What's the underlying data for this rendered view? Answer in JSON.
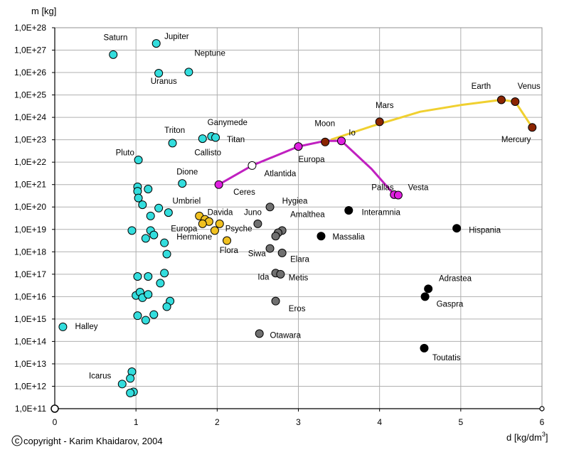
{
  "chart_data": {
    "type": "scatter",
    "xlabel": "d [kg/dm",
    "xlabel_sup": "3",
    "xlabel_close": "]",
    "ylabel": "m [kg]",
    "xlim": [
      0,
      6
    ],
    "ylim_log10": [
      11,
      28
    ],
    "grid": true,
    "x_ticks": [
      "0",
      "1",
      "2",
      "3",
      "4",
      "5",
      "6"
    ],
    "y_ticks": [
      "1,0E+11",
      "1,0E+12",
      "1,0E+13",
      "1,0E+14",
      "1,0E+15",
      "1,0E+16",
      "1,0E+17",
      "1,0E+18",
      "1,0E+19",
      "1,0E+20",
      "1,0E+21",
      "1,0E+22",
      "1,0E+23",
      "1,0E+24",
      "1,0E+25",
      "1,0E+26",
      "1,0E+27",
      "1,0E+28"
    ],
    "copyright_symbol": "c",
    "copyright_text": "copyright - Karim Khaidarov, 2004",
    "colors": {
      "cyan": "#33dddd",
      "gold": "#f0c020",
      "gray": "#707070",
      "black": "#000000",
      "brown": "#8b2500",
      "magenta": "#e020e0",
      "white": "#ffffff",
      "gold_line": "#f0d030",
      "magenta_line": "#c020c0"
    },
    "series": [
      {
        "color": "cyan",
        "points": [
          [
            0.72,
            26.8
          ],
          [
            1.25,
            27.3
          ],
          [
            1.28,
            25.97
          ],
          [
            1.65,
            26.02
          ],
          [
            1.45,
            22.85
          ],
          [
            1.82,
            23.05
          ],
          [
            1.93,
            23.15
          ],
          [
            1.98,
            23.1
          ],
          [
            1.03,
            22.1
          ],
          [
            1.57,
            21.05
          ],
          [
            1.02,
            20.9
          ],
          [
            1.15,
            20.8
          ],
          [
            1.02,
            20.7
          ],
          [
            1.03,
            20.4
          ],
          [
            1.08,
            20.1
          ],
          [
            1.28,
            19.95
          ],
          [
            1.4,
            19.75
          ],
          [
            1.18,
            19.6
          ],
          [
            0.95,
            18.95
          ],
          [
            1.18,
            18.95
          ],
          [
            1.22,
            18.75
          ],
          [
            1.12,
            18.6
          ],
          [
            1.35,
            18.4
          ],
          [
            1.38,
            17.9
          ],
          [
            1.02,
            16.9
          ],
          [
            1.15,
            16.9
          ],
          [
            1.35,
            17.05
          ],
          [
            1.3,
            16.6
          ],
          [
            1.0,
            16.05
          ],
          [
            1.05,
            16.2
          ],
          [
            1.08,
            15.95
          ],
          [
            1.15,
            16.1
          ],
          [
            1.42,
            15.8
          ],
          [
            1.38,
            15.55
          ],
          [
            1.02,
            15.15
          ],
          [
            1.12,
            14.95
          ],
          [
            1.22,
            15.2
          ],
          [
            0.1,
            14.65
          ],
          [
            0.95,
            12.65
          ],
          [
            0.93,
            12.35
          ],
          [
            0.83,
            12.1
          ],
          [
            0.97,
            11.75
          ],
          [
            0.93,
            11.7
          ]
        ]
      },
      {
        "color": "gold",
        "points": [
          [
            1.78,
            19.6
          ],
          [
            1.85,
            19.45
          ],
          [
            1.9,
            19.35
          ],
          [
            1.82,
            19.25
          ],
          [
            2.03,
            19.25
          ],
          [
            1.97,
            18.95
          ],
          [
            2.12,
            18.5
          ]
        ]
      },
      {
        "color": "gray",
        "points": [
          [
            2.65,
            20.0
          ],
          [
            2.5,
            19.25
          ],
          [
            2.8,
            18.95
          ],
          [
            2.75,
            18.85
          ],
          [
            2.72,
            18.7
          ],
          [
            2.65,
            18.15
          ],
          [
            2.8,
            17.95
          ],
          [
            2.72,
            17.05
          ],
          [
            2.78,
            17.0
          ],
          [
            2.72,
            15.8
          ],
          [
            2.52,
            14.35
          ]
        ]
      },
      {
        "color": "black",
        "points": [
          [
            3.62,
            19.85
          ],
          [
            3.28,
            18.7
          ],
          [
            4.95,
            19.05
          ],
          [
            4.6,
            16.35
          ],
          [
            4.56,
            16.0
          ],
          [
            4.55,
            13.7
          ]
        ]
      },
      {
        "color": "brown",
        "points": [
          [
            5.5,
            24.78
          ],
          [
            5.67,
            24.7
          ],
          [
            5.88,
            23.55
          ],
          [
            4.0,
            23.8
          ],
          [
            3.33,
            22.9
          ]
        ]
      },
      {
        "color": "magenta",
        "points": [
          [
            3.53,
            22.95
          ],
          [
            3.0,
            22.7
          ],
          [
            2.02,
            21.0
          ],
          [
            4.18,
            20.55
          ],
          [
            4.23,
            20.53
          ]
        ]
      },
      {
        "color": "white",
        "points": [
          [
            2.43,
            21.85
          ]
        ]
      }
    ],
    "lines": [
      {
        "color": "gold_line",
        "points": [
          [
            3.4,
            23.0
          ],
          [
            3.9,
            23.6
          ],
          [
            4.5,
            24.25
          ],
          [
            5.0,
            24.55
          ],
          [
            5.5,
            24.78
          ],
          [
            5.67,
            24.7
          ],
          [
            5.88,
            23.55
          ]
        ]
      },
      {
        "color": "magenta_line",
        "points": [
          [
            2.02,
            21.0
          ],
          [
            2.43,
            21.85
          ],
          [
            3.0,
            22.7
          ],
          [
            3.33,
            22.95
          ],
          [
            3.53,
            22.95
          ],
          [
            3.9,
            21.7
          ],
          [
            4.18,
            20.55
          ],
          [
            4.23,
            20.53
          ]
        ]
      }
    ],
    "annotations": [
      {
        "text": "Saturn",
        "x": 0.6,
        "y": 27.45
      },
      {
        "text": "Jupiter",
        "x": 1.35,
        "y": 27.5
      },
      {
        "text": "Neptune",
        "x": 1.72,
        "y": 26.75
      },
      {
        "text": "Uranus",
        "x": 1.18,
        "y": 25.5
      },
      {
        "text": "Earth",
        "x": 5.13,
        "y": 25.28
      },
      {
        "text": "Venus",
        "x": 5.7,
        "y": 25.28
      },
      {
        "text": "Mars",
        "x": 3.95,
        "y": 24.42
      },
      {
        "text": "Mercury",
        "x": 5.5,
        "y": 22.9
      },
      {
        "text": "Moon",
        "x": 3.2,
        "y": 23.6
      },
      {
        "text": "Io",
        "x": 3.62,
        "y": 23.2
      },
      {
        "text": "Ganymede",
        "x": 1.88,
        "y": 23.65
      },
      {
        "text": "Titan",
        "x": 2.12,
        "y": 22.9
      },
      {
        "text": "Triton",
        "x": 1.35,
        "y": 23.3
      },
      {
        "text": "Callisto",
        "x": 1.72,
        "y": 22.3
      },
      {
        "text": "Pluto",
        "x": 0.75,
        "y": 22.3
      },
      {
        "text": "Europa",
        "x": 3.0,
        "y": 22.0
      },
      {
        "text": "Atlantida",
        "x": 2.58,
        "y": 21.37
      },
      {
        "text": "Dione",
        "x": 1.5,
        "y": 21.45
      },
      {
        "text": "Ceres",
        "x": 2.2,
        "y": 20.55
      },
      {
        "text": "Pallas",
        "x": 3.9,
        "y": 20.75
      },
      {
        "text": "Vesta",
        "x": 4.35,
        "y": 20.75
      },
      {
        "text": "Hygiea",
        "x": 2.8,
        "y": 20.15
      },
      {
        "text": "Interamnia",
        "x": 3.78,
        "y": 19.65
      },
      {
        "text": "Umbriel",
        "x": 1.45,
        "y": 20.15
      },
      {
        "text": "Davida",
        "x": 1.88,
        "y": 19.65
      },
      {
        "text": "Juno",
        "x": 2.33,
        "y": 19.65
      },
      {
        "text": "Amalthea",
        "x": 2.9,
        "y": 19.55
      },
      {
        "text": "Europa",
        "x": 1.43,
        "y": 18.92
      },
      {
        "text": "Psyche",
        "x": 2.1,
        "y": 18.92
      },
      {
        "text": "Hermione",
        "x": 1.5,
        "y": 18.55
      },
      {
        "text": "Massalia",
        "x": 3.42,
        "y": 18.55
      },
      {
        "text": "Hispania",
        "x": 5.1,
        "y": 18.85
      },
      {
        "text": "Flora",
        "x": 2.03,
        "y": 17.95
      },
      {
        "text": "Siwa",
        "x": 2.38,
        "y": 17.8
      },
      {
        "text": "Elara",
        "x": 2.9,
        "y": 17.55
      },
      {
        "text": "Ida",
        "x": 2.5,
        "y": 16.75
      },
      {
        "text": "Metis",
        "x": 2.88,
        "y": 16.72
      },
      {
        "text": "Adrastea",
        "x": 4.73,
        "y": 16.7
      },
      {
        "text": "Gaspra",
        "x": 4.7,
        "y": 15.55
      },
      {
        "text": "Eros",
        "x": 2.88,
        "y": 15.35
      },
      {
        "text": "Halley",
        "x": 0.25,
        "y": 14.55
      },
      {
        "text": "Otawara",
        "x": 2.65,
        "y": 14.15
      },
      {
        "text": "Toutatis",
        "x": 4.65,
        "y": 13.15
      },
      {
        "text": "Icarus",
        "x": 0.42,
        "y": 12.35
      }
    ]
  }
}
